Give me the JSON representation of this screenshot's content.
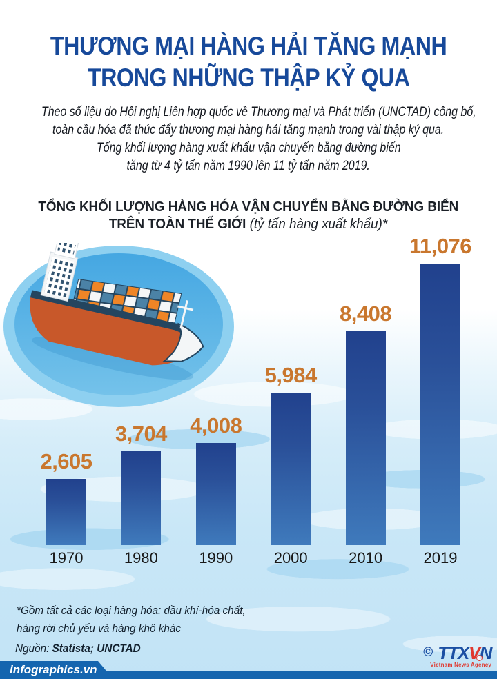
{
  "page": {
    "title_line1": "THƯƠNG MẠI HÀNG HẢI TĂNG MẠNH",
    "title_line2": "TRONG NHỮNG THẬP KỶ QUA",
    "intro_line1": "Theo số liệu do Hội nghị Liên hợp quốc về Thương mại và Phát triển (UNCTAD) công bố,",
    "intro_line2": "toàn cầu hóa đã thúc đẩy thương mại hàng hải tăng mạnh trong vài thập kỷ qua.",
    "intro_line3": "Tổng khối lượng hàng xuất khẩu vận chuyển bằng đường biển",
    "intro_line4": "tăng từ 4 tỷ tấn năm 1990 lên 11 tỷ tấn năm 2019."
  },
  "chart": {
    "heading_line1": "TỔNG KHỐI LƯỢNG HÀNG HÓA VẬN CHUYỂN BẰNG ĐƯỜNG BIỂN",
    "heading_line2_bold": "TRÊN TOÀN THẾ GIỚI",
    "heading_line2_italic": "(tỷ tấn hàng xuất khẩu)*"
  },
  "chart_data": {
    "type": "bar",
    "title": "TỔNG KHỐI LƯỢNG HÀNG HÓA VẬN CHUYỂN BẰNG ĐƯỜNG BIỂN TRÊN TOÀN THẾ GIỚI (tỷ tấn hàng xuất khẩu)*",
    "categories": [
      "1970",
      "1980",
      "1990",
      "2000",
      "2010",
      "2019"
    ],
    "values": [
      2605,
      3704,
      4008,
      5984,
      8408,
      11076
    ],
    "value_labels": [
      "2,605",
      "3,704",
      "4,008",
      "5,984",
      "8,408",
      "11,076"
    ],
    "unit": "tỷ tấn hàng xuất khẩu",
    "xlabel": "",
    "ylabel": "",
    "ylim": [
      0,
      11500
    ],
    "grid": false,
    "legend": "none",
    "bar_color_top": "#21418d",
    "bar_color_bottom": "#3f7abc",
    "value_label_color": "#c9772e",
    "category_label_color": "#181818"
  },
  "footnote": {
    "line1": "*Gồm tất cả các loại hàng hóa: dầu khí-hóa chất,",
    "line2": "hàng rời chủ yếu và hàng khô khác"
  },
  "source": {
    "label": "Nguồn:",
    "value": "Statista; UNCTAD"
  },
  "footer": {
    "site": "infographics.vn",
    "copyright_symbol": "©",
    "logo_part_ttx": "TTX",
    "logo_part_v": "V",
    "logo_part_n": "N",
    "logo_subtitle": "Vietnam News Agency"
  },
  "colors": {
    "title_blue": "#17499a",
    "accent_orange": "#c9772e",
    "footer_blue": "#1465af",
    "logo_blue": "#1b4fa3",
    "logo_red": "#e0392f",
    "water_light": "#c9e7f7",
    "disc_outer": "#8ed0f0",
    "disc_inner": "#49a9e3"
  },
  "icons": {
    "ship": "cargo-ship-illustration",
    "globe": "globe-icon",
    "copyright": "copyright-icon"
  }
}
